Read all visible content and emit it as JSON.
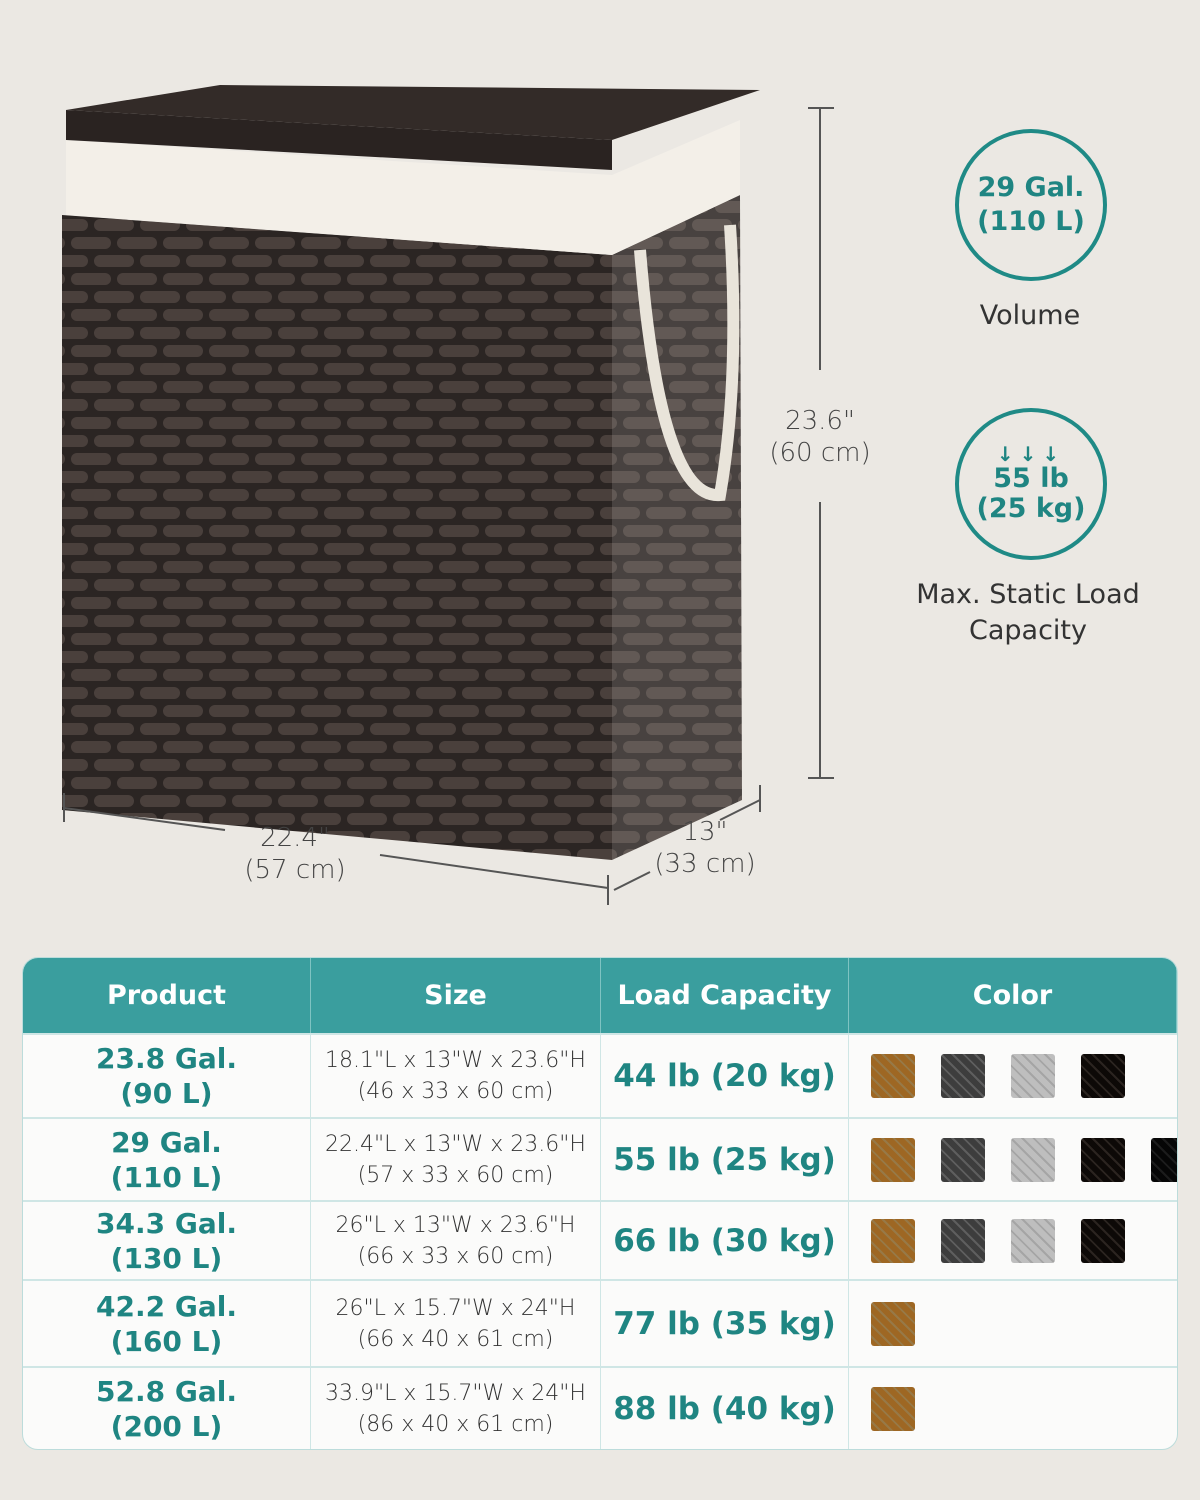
{
  "dimensions": {
    "height_in": "23.6\"",
    "height_cm": "(60 cm)",
    "length_in": "22.4\"",
    "length_cm": "(57 cm)",
    "width_in": "13\"",
    "width_cm": "(33 cm)"
  },
  "features": [
    {
      "value_line1": "29 Gal.",
      "value_line2": "(110 L)",
      "label": "Volume",
      "icon": "none"
    },
    {
      "value_line1": "55 lb",
      "value_line2": "(25 kg)",
      "label_line1": "Max. Static Load",
      "label_line2": "Capacity",
      "icon": "down-arrows-icon"
    }
  ],
  "table": {
    "headers": [
      "Product",
      "Size",
      "Load Capacity",
      "Color"
    ],
    "rows": [
      {
        "product": [
          "23.8 Gal.",
          "(90 L)"
        ],
        "size": [
          "18.1\"L x 13\"W x 23.6\"H",
          "(46 x 33 x 60 cm)"
        ],
        "load": "44 lb (20 kg)",
        "colors": [
          "natural",
          "gray",
          "white",
          "brown"
        ]
      },
      {
        "product": [
          "29 Gal.",
          "(110 L)"
        ],
        "size": [
          "22.4\"L x 13\"W x 23.6\"H",
          "(57 x 33 x 60 cm)"
        ],
        "load": "55 lb (25 kg)",
        "colors": [
          "natural",
          "gray",
          "white",
          "brown",
          "black"
        ]
      },
      {
        "product": [
          "34.3 Gal.",
          "(130 L)"
        ],
        "size": [
          "26\"L x 13\"W x 23.6\"H",
          "(66 x 33 x 60 cm)"
        ],
        "load": "66 lb (30 kg)",
        "colors": [
          "natural",
          "gray",
          "white",
          "brown"
        ]
      },
      {
        "product": [
          "42.2 Gal.",
          "(160 L)"
        ],
        "size": [
          "26\"L x 15.7\"W x 24\"H",
          "(66 x 40 x 61 cm)"
        ],
        "load": "77 lb (35 kg)",
        "colors": [
          "natural"
        ]
      },
      {
        "product": [
          "52.8 Gal.",
          "(200 L)"
        ],
        "size": [
          "33.9\"L x 15.7\"W x 24\"H",
          "(86 x 40 x 61 cm)"
        ],
        "load": "88 lb (40 kg)",
        "colors": [
          "natural"
        ]
      }
    ]
  },
  "swatch_colors": {
    "natural": "#c9a25f",
    "gray": "#7d7d7d",
    "white": "#dcdcdc",
    "brown": "#3a302b",
    "black": "#262626"
  },
  "accent": "#3a9e9e"
}
